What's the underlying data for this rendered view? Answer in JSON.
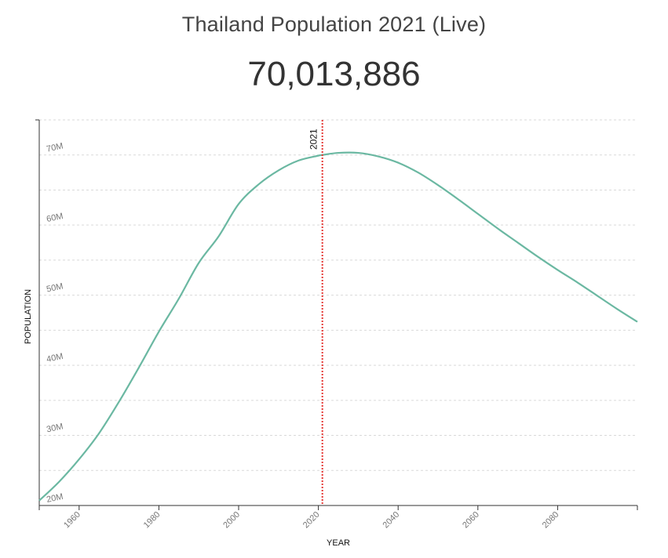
{
  "header": {
    "title": "Thailand Population 2021 (Live)",
    "counter": "70,013,886"
  },
  "chart_data": {
    "type": "line",
    "xlabel": "YEAR",
    "ylabel": "POPULATION",
    "xlim": [
      1950,
      2100
    ],
    "ylim": [
      20000000,
      75000000
    ],
    "x_ticks": [
      1960,
      1980,
      2000,
      2020,
      2040,
      2060,
      2080
    ],
    "y_ticks": [
      20000000,
      30000000,
      40000000,
      50000000,
      60000000,
      70000000
    ],
    "y_tick_labels": [
      "20M",
      "30M",
      "40M",
      "50M",
      "60M",
      "70M"
    ],
    "grid": true,
    "line_color": "#6bb8a2",
    "marker": {
      "year": 2021,
      "label": "2021",
      "color": "#e53935"
    },
    "series": [
      {
        "x": [
          1950,
          1955,
          1960,
          1965,
          1970,
          1975,
          1980,
          1985,
          1990,
          1995,
          2000,
          2005,
          2010,
          2015,
          2020,
          2021,
          2025,
          2030,
          2035,
          2040,
          2045,
          2050,
          2055,
          2060,
          2065,
          2070,
          2075,
          2080,
          2085,
          2090,
          2095,
          2100
        ],
        "y": [
          20700000,
          23400000,
          26600000,
          30300000,
          34800000,
          39700000,
          44800000,
          49500000,
          54600000,
          58400000,
          63000000,
          65800000,
          67800000,
          69200000,
          69900000,
          70000000,
          70300000,
          70300000,
          69800000,
          68900000,
          67500000,
          65700000,
          63700000,
          61600000,
          59500000,
          57500000,
          55500000,
          53600000,
          51800000,
          49900000,
          48000000,
          46200000
        ]
      }
    ]
  }
}
